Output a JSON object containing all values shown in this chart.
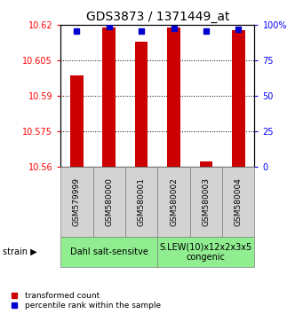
{
  "title": "GDS3873 / 1371449_at",
  "samples": [
    "GSM579999",
    "GSM580000",
    "GSM580001",
    "GSM580002",
    "GSM580003",
    "GSM580004"
  ],
  "red_values": [
    10.5985,
    10.619,
    10.613,
    10.619,
    10.562,
    10.618
  ],
  "blue_values": [
    96,
    99,
    96,
    98,
    96,
    97
  ],
  "ylim_left": [
    10.56,
    10.62
  ],
  "ylim_right": [
    0,
    100
  ],
  "yticks_left": [
    10.56,
    10.575,
    10.59,
    10.605,
    10.62
  ],
  "yticks_right": [
    0,
    25,
    50,
    75,
    100
  ],
  "ytick_labels_left": [
    "10.56",
    "10.575",
    "10.59",
    "10.605",
    "10.62"
  ],
  "ytick_labels_right": [
    "0",
    "25",
    "50",
    "75",
    "100%"
  ],
  "group1_label": "Dahl salt-sensitve",
  "group2_label": "S.LEW(10)x12x2x3x5\ncongenic",
  "strain_label": "strain",
  "legend_red": "transformed count",
  "legend_blue": "percentile rank within the sample",
  "bar_color": "#cc0000",
  "dot_color": "#0000cc",
  "group_bg_color": "#90ee90",
  "sample_bg_color": "#d3d3d3",
  "bar_width": 0.4
}
